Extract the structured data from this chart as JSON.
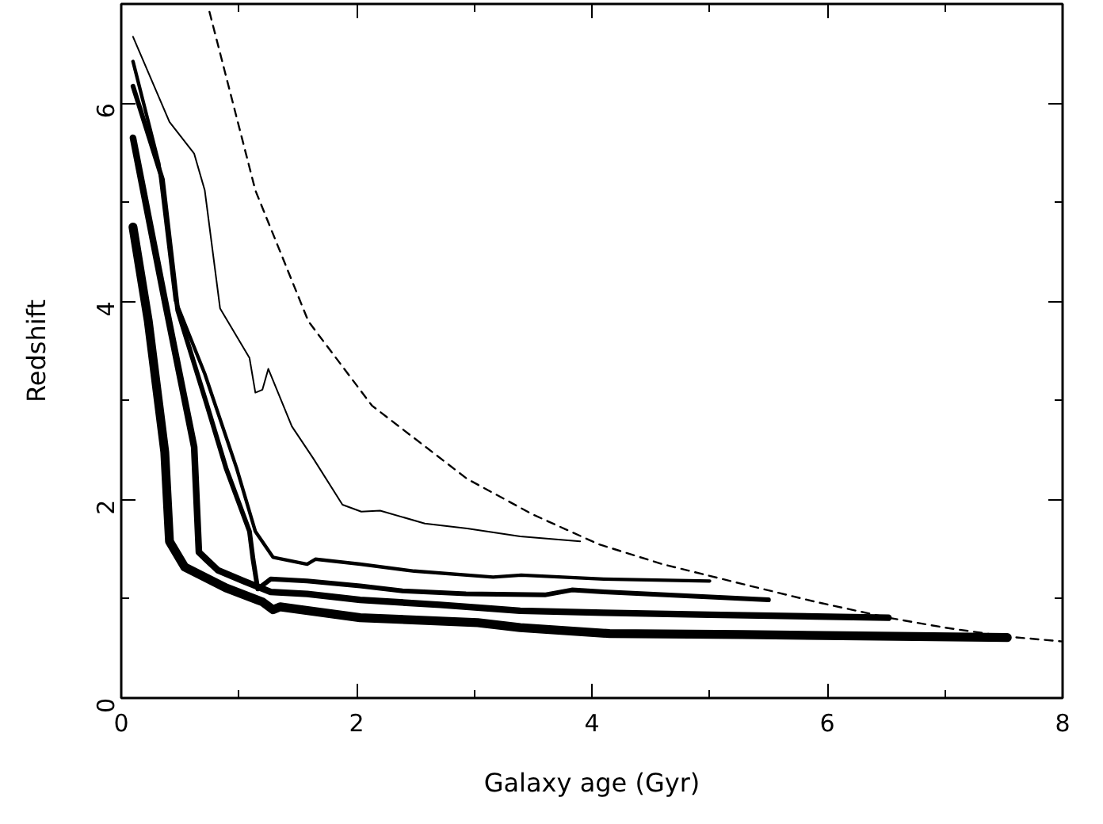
{
  "chart_data": {
    "type": "line",
    "xlabel": "Galaxy age (Gyr)",
    "ylabel": "Redshift",
    "xlim": [
      0,
      8
    ],
    "ylim": [
      0,
      7
    ],
    "xticks": [
      0,
      {
        "value": 1,
        "label": null
      },
      2,
      {
        "value": 3,
        "label": null
      },
      4,
      {
        "value": 5,
        "label": null
      },
      6,
      {
        "value": 7,
        "label": null
      },
      8
    ],
    "yticks": [
      0,
      {
        "value": 1,
        "label": null
      },
      2,
      {
        "value": 3,
        "label": null
      },
      4,
      {
        "value": 5,
        "label": null
      },
      6
    ],
    "grid": false,
    "marker": "none",
    "series": [
      {
        "color": "#000000",
        "line_style": "dashed",
        "x": [
          0.75,
          1.14,
          1.59,
          2.13,
          2.94,
          3.5,
          4.06,
          4.6,
          5.28,
          5.9,
          6.52,
          7.0,
          7.53,
          8.0
        ],
        "values": [
          6.92,
          5.12,
          3.8,
          2.95,
          2.21,
          1.85,
          1.55,
          1.35,
          1.15,
          0.97,
          0.81,
          0.71,
          0.62,
          0.57
        ]
      },
      {
        "color": "#000000",
        "line_style": "solid",
        "x": [
          0.1,
          0.41,
          0.62,
          0.71,
          0.84,
          1.09,
          1.14,
          1.2,
          1.25,
          1.45,
          1.63,
          1.88,
          2.04,
          2.2,
          2.58,
          2.94,
          3.39,
          3.9
        ],
        "values": [
          6.67,
          5.81,
          5.49,
          5.12,
          3.93,
          3.43,
          3.08,
          3.11,
          3.32,
          2.74,
          2.42,
          1.95,
          1.88,
          1.89,
          1.76,
          1.71,
          1.63,
          1.58
        ]
      },
      {
        "color": "#000000",
        "line_style": "solid",
        "x": [
          0.1,
          0.32,
          0.46,
          0.71,
          0.98,
          1.14,
          1.29,
          1.58,
          1.65,
          2.03,
          2.49,
          3.16,
          3.4,
          4.1,
          5.0
        ],
        "values": [
          6.42,
          5.39,
          4.01,
          3.27,
          2.32,
          1.68,
          1.42,
          1.35,
          1.4,
          1.35,
          1.28,
          1.22,
          1.24,
          1.2,
          1.18
        ]
      },
      {
        "color": "#000000",
        "line_style": "solid",
        "x": [
          0.1,
          0.35,
          0.48,
          0.73,
          0.89,
          1.09,
          1.12,
          1.16,
          1.27,
          1.58,
          2.03,
          2.39,
          2.93,
          3.6,
          3.83,
          4.1,
          5.5
        ],
        "values": [
          6.17,
          5.23,
          3.91,
          2.95,
          2.32,
          1.68,
          1.4,
          1.1,
          1.2,
          1.18,
          1.13,
          1.08,
          1.05,
          1.04,
          1.09,
          1.07,
          0.99
        ]
      },
      {
        "color": "#000000",
        "line_style": "solid",
        "x": [
          0.1,
          0.23,
          0.37,
          0.62,
          0.66,
          0.82,
          1.04,
          1.27,
          1.58,
          2.03,
          2.71,
          3.39,
          4.1,
          5.0,
          6.52
        ],
        "values": [
          5.65,
          4.86,
          4.01,
          2.53,
          1.47,
          1.29,
          1.18,
          1.07,
          1.05,
          0.99,
          0.94,
          0.88,
          0.86,
          0.84,
          0.81
        ]
      },
      {
        "color": "#000000",
        "line_style": "solid",
        "x": [
          0.1,
          0.23,
          0.37,
          0.41,
          0.54,
          0.89,
          1.2,
          1.29,
          1.35,
          2.03,
          3.03,
          3.39,
          4.15,
          5.28,
          7.53
        ],
        "values": [
          4.75,
          3.8,
          2.48,
          1.58,
          1.32,
          1.11,
          0.97,
          0.89,
          0.92,
          0.81,
          0.76,
          0.71,
          0.65,
          0.64,
          0.61
        ]
      }
    ]
  }
}
